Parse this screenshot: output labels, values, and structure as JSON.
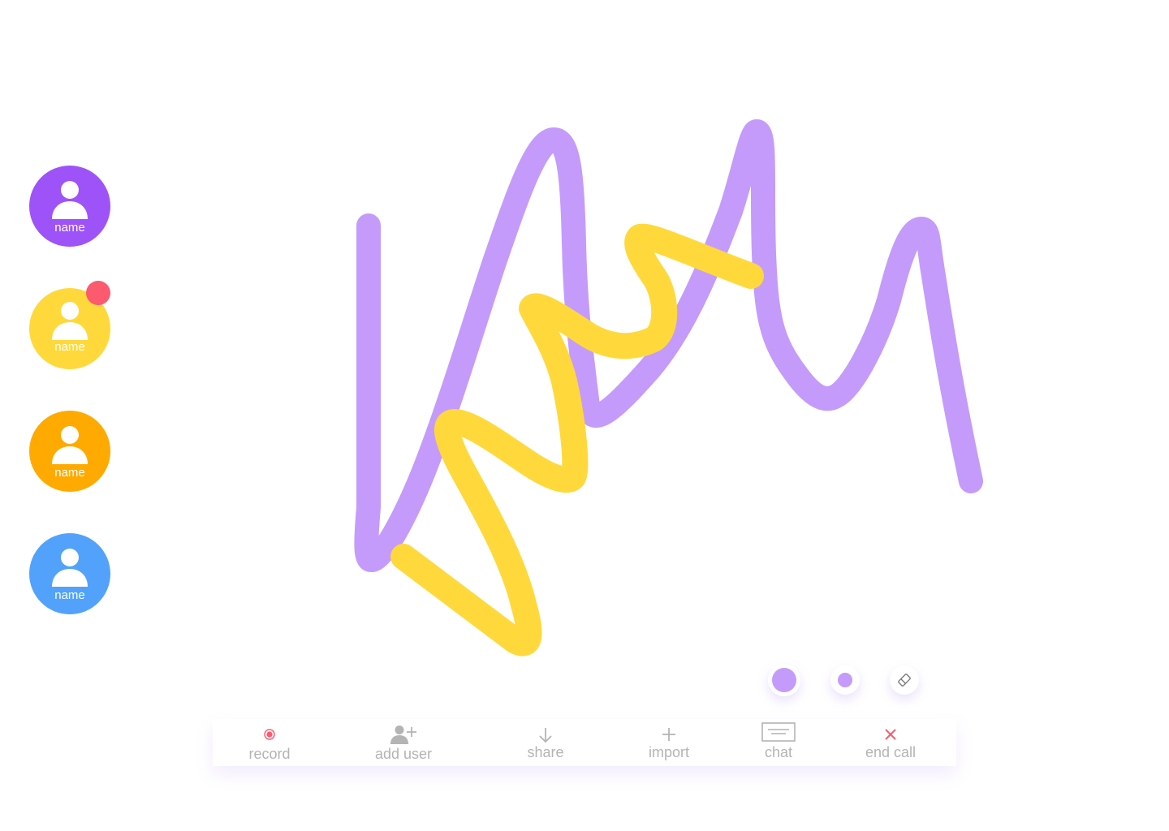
{
  "participants": [
    {
      "name": "name",
      "color": "#9e53f8",
      "badge": false
    },
    {
      "name": "name",
      "color": "#ffd93b",
      "badge": true
    },
    {
      "name": "name",
      "color": "#ffaa00",
      "badge": false
    },
    {
      "name": "name",
      "color": "#52a2fc",
      "badge": false
    }
  ],
  "colors": {
    "purple_stroke": "#c49bfb",
    "yellow_stroke": "#ffd93b",
    "badge": "#fc5a6e",
    "toolbar_text": "#b4b4b4",
    "record_icon": "#fc5a6e",
    "end_call_icon": "#fc5a6e"
  },
  "tools": {
    "large_brush": {
      "icon": "brush-large-icon"
    },
    "small_brush": {
      "icon": "brush-small-icon"
    },
    "eraser": {
      "icon": "eraser-icon"
    }
  },
  "toolbar": {
    "record": {
      "label": "record",
      "icon": "record-icon"
    },
    "add_user": {
      "label": "add user",
      "icon": "add-user-icon"
    },
    "share": {
      "label": "share",
      "icon": "arrow-down-icon"
    },
    "import": {
      "label": "import",
      "icon": "plus-icon"
    },
    "chat": {
      "label": "chat",
      "icon": "chat-icon"
    },
    "end_call": {
      "label": "end call",
      "icon": "close-icon"
    }
  }
}
